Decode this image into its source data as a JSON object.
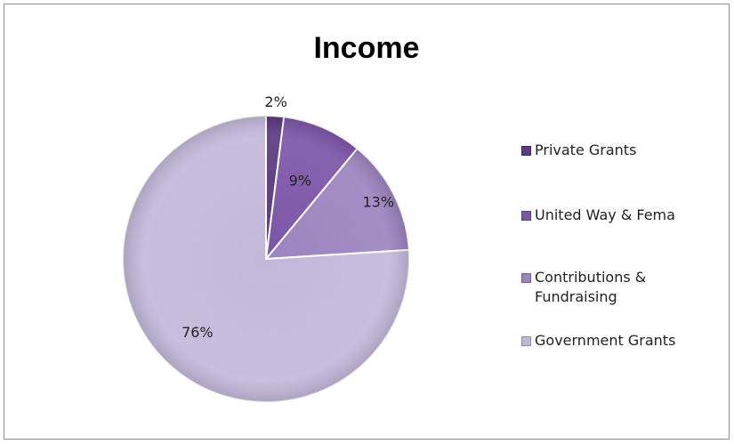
{
  "chart_data": {
    "type": "pie",
    "title": "Income",
    "categories": [
      "Private Grants",
      "United Way & Fema",
      "Contributions & Fundraising",
      "Government Grants"
    ],
    "values": [
      2,
      9,
      13,
      76
    ],
    "labels": [
      "2%",
      "9%",
      "13%",
      "76%"
    ],
    "colors": [
      "#5a3a80",
      "#7d55a8",
      "#9c84c0",
      "#c4b8da"
    ],
    "legend": "right",
    "legend_lines": [
      [
        "Private Grants"
      ],
      [
        "United Way & Fema"
      ],
      [
        "Contributions &",
        "Fundraising"
      ],
      [
        "Government Grants"
      ]
    ]
  }
}
